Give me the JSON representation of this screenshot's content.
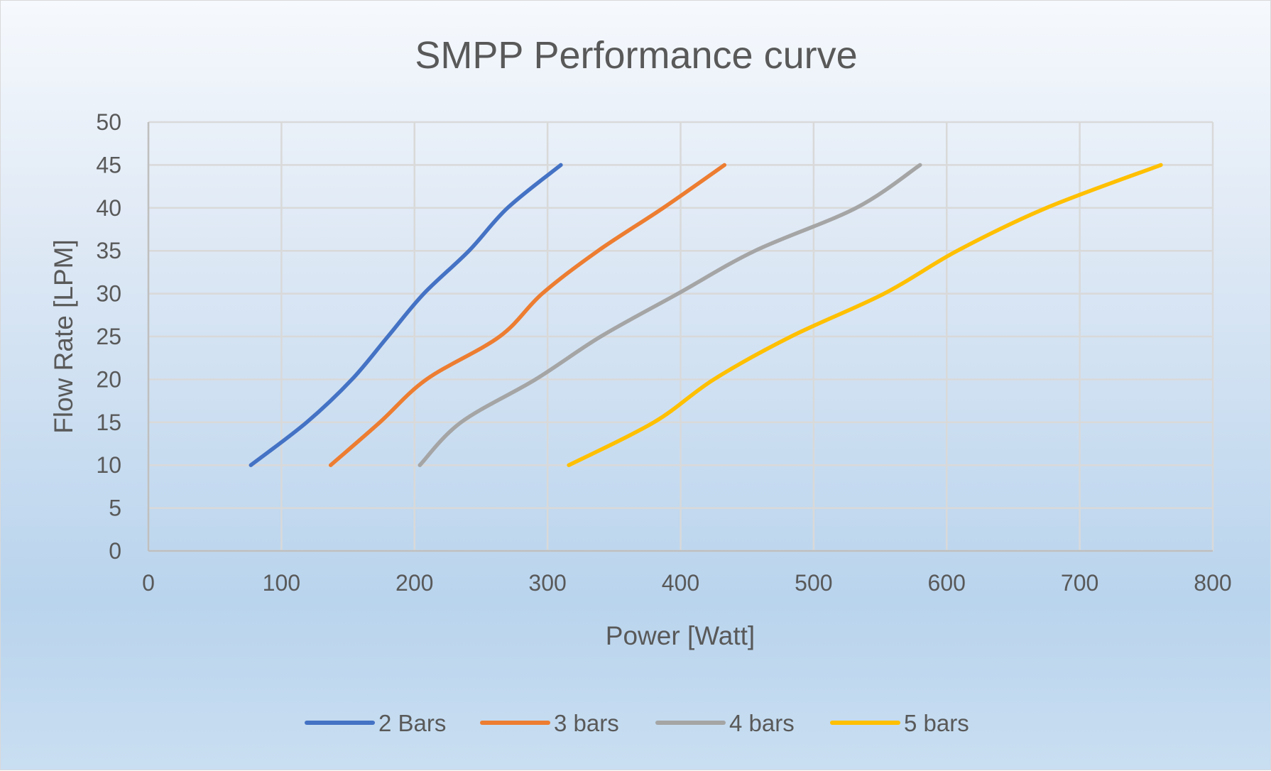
{
  "chart_data": {
    "type": "line",
    "title": "SMPP Performance curve",
    "xlabel": "Power [Watt]",
    "ylabel": "Flow Rate [LPM]",
    "xlim": [
      0,
      800
    ],
    "ylim": [
      0,
      50
    ],
    "x_ticks": [
      "0",
      "100",
      "200",
      "300",
      "400",
      "500",
      "600",
      "700",
      "800"
    ],
    "y_ticks": [
      "0",
      "5",
      "10",
      "15",
      "20",
      "25",
      "30",
      "35",
      "40",
      "45",
      "50"
    ],
    "grid": true,
    "smooth": true,
    "legend_position": "bottom",
    "series": [
      {
        "name": "2 Bars",
        "color": "#4472c4",
        "points": [
          [
            77,
            10
          ],
          [
            119,
            15
          ],
          [
            153,
            20
          ],
          [
            180,
            25
          ],
          [
            207,
            30
          ],
          [
            241,
            35
          ],
          [
            270,
            40
          ],
          [
            310,
            45
          ]
        ]
      },
      {
        "name": "3 bars",
        "color": "#ed7d31",
        "points": [
          [
            137,
            10
          ],
          [
            174,
            15
          ],
          [
            209,
            20
          ],
          [
            264,
            25
          ],
          [
            296,
            30
          ],
          [
            338,
            35
          ],
          [
            387,
            40
          ],
          [
            433,
            45
          ]
        ]
      },
      {
        "name": "4 bars",
        "color": "#a5a5a5",
        "points": [
          [
            204,
            10
          ],
          [
            235,
            15
          ],
          [
            291,
            20
          ],
          [
            340,
            25
          ],
          [
            398,
            30
          ],
          [
            456,
            35
          ],
          [
            532,
            40
          ],
          [
            580,
            45
          ]
        ]
      },
      {
        "name": "5 bars",
        "color": "#ffc000",
        "points": [
          [
            316,
            10
          ],
          [
            380,
            15
          ],
          [
            425,
            20
          ],
          [
            483,
            25
          ],
          [
            553,
            30
          ],
          [
            608,
            35
          ],
          [
            675,
            40
          ],
          [
            761,
            45
          ]
        ]
      }
    ]
  }
}
